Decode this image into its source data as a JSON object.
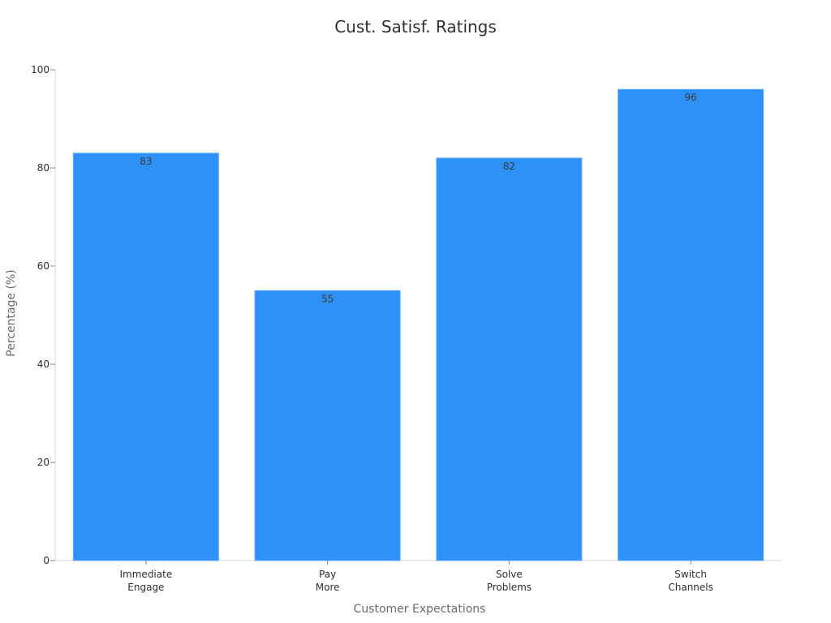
{
  "chart_data": {
    "type": "bar",
    "title": "Cust. Satisf. Ratings",
    "xlabel": "Customer Expectations",
    "ylabel": "Percentage (%)",
    "categories": [
      [
        "Immediate",
        "Engage"
      ],
      [
        "Pay",
        "More"
      ],
      [
        "Solve",
        "Problems"
      ],
      [
        "Switch",
        "Channels"
      ]
    ],
    "values": [
      83,
      55,
      82,
      96
    ],
    "value_labels": [
      "83",
      "55",
      "82",
      "96"
    ],
    "ylim": [
      0,
      100
    ],
    "yticks": [
      0,
      20,
      40,
      60,
      80,
      100
    ],
    "ytick_labels": [
      "0",
      "20",
      "40",
      "60",
      "80",
      "100"
    ],
    "grid": false,
    "legend": false,
    "colors": {
      "bar": "#2e91f8",
      "bar_edge": "#5aa9fa"
    }
  }
}
